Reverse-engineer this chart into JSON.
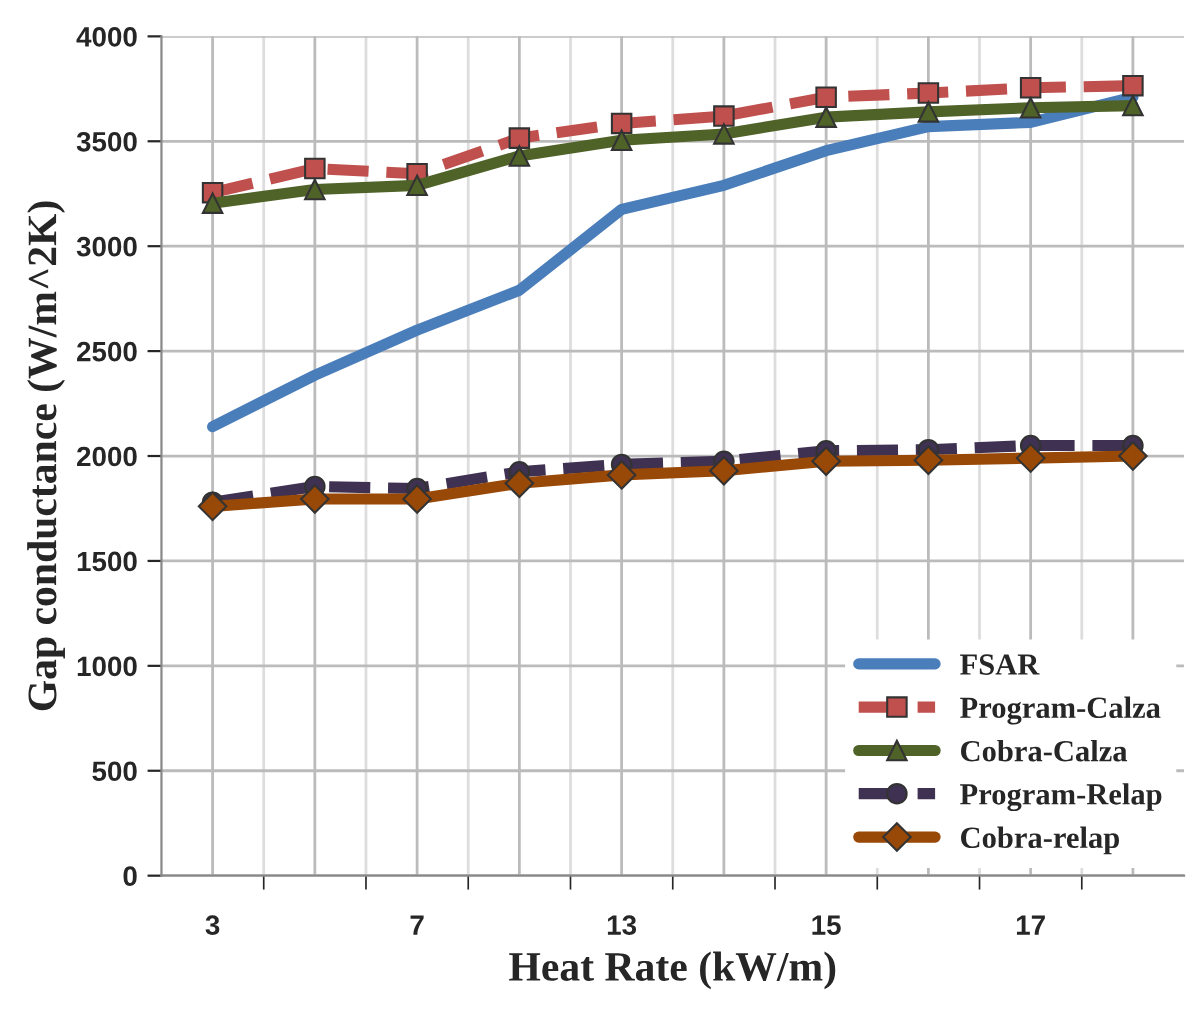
{
  "chart_data": {
    "type": "line",
    "xlabel": "Heat Rate (kW/m)",
    "ylabel": "Gap conductance (W/m^2K)",
    "categories": [
      "3",
      null,
      "7",
      null,
      "13",
      null,
      "15",
      null,
      "17",
      null
    ],
    "ylim": [
      0,
      4000
    ],
    "yticks": [
      0,
      500,
      1000,
      1500,
      2000,
      2500,
      3000,
      3500,
      4000
    ],
    "grid": true,
    "legend": "bottom right",
    "series": [
      {
        "name": "FSAR",
        "color": "#4a7ebb",
        "marker": "none",
        "line_style": "solid",
        "values": [
          2140,
          2385,
          2600,
          2790,
          3175,
          3290,
          3455,
          3570,
          3590,
          3710
        ]
      },
      {
        "name": "Program-Calza",
        "color": "#c0504d",
        "marker": "square",
        "line_style": "dashed",
        "values": [
          3255,
          3370,
          3345,
          3515,
          3585,
          3620,
          3710,
          3730,
          3755,
          3765
        ]
      },
      {
        "name": "Cobra-Calza",
        "color": "#4f6228",
        "marker": "triangle",
        "line_style": "solid",
        "values": [
          3205,
          3270,
          3290,
          3430,
          3505,
          3535,
          3615,
          3640,
          3660,
          3670
        ]
      },
      {
        "name": "Program-Relap",
        "color": "#3f3151",
        "marker": "circle",
        "line_style": "dashed",
        "values": [
          1780,
          1855,
          1845,
          1925,
          1960,
          1975,
          2025,
          2030,
          2050,
          2050
        ]
      },
      {
        "name": "Cobra-relap",
        "color": "#984807",
        "marker": "diamond",
        "line_style": "solid",
        "values": [
          1760,
          1795,
          1795,
          1870,
          1910,
          1930,
          1975,
          1980,
          1990,
          2000
        ]
      }
    ]
  }
}
